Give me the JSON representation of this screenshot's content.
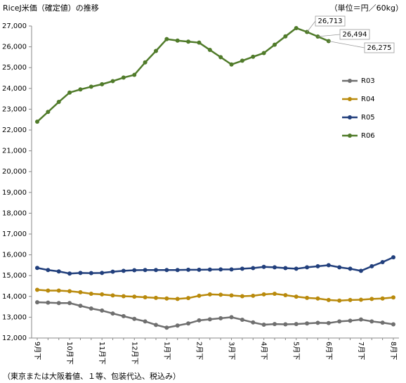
{
  "chart_data": {
    "type": "line",
    "title": "RiceJ米価（確定値）の推移",
    "unit_note": "（単位＝円／60kg）",
    "footnote": "（東京または大阪着値、１等、包装代込、税込み）",
    "categories": [
      "9月下",
      null,
      null,
      "10月下",
      null,
      null,
      "11月下",
      null,
      null,
      "12月下",
      null,
      null,
      "1月下",
      null,
      null,
      "2月下",
      null,
      null,
      "3月下",
      null,
      null,
      "4月下",
      null,
      null,
      "5月下",
      null,
      null,
      "6月下",
      null,
      null,
      "7月下",
      null,
      null,
      "8月下"
    ],
    "ylim": [
      12000,
      27000
    ],
    "yticks": [
      {
        "value": 12000,
        "label": "12,000"
      },
      {
        "value": 13000,
        "label": "13,000"
      },
      {
        "value": 14000,
        "label": "14,000"
      },
      {
        "value": 15000,
        "label": "15,000"
      },
      {
        "value": 16000,
        "label": "16,000"
      },
      {
        "value": 17000,
        "label": "17,000"
      },
      {
        "value": 18000,
        "label": "18,000"
      },
      {
        "value": 19000,
        "label": "19,000"
      },
      {
        "value": 20000,
        "label": "20,000"
      },
      {
        "value": 21000,
        "label": "21,000"
      },
      {
        "value": 22000,
        "label": "22,000"
      },
      {
        "value": 23000,
        "label": "23,000"
      },
      {
        "value": 24000,
        "label": "24,000"
      },
      {
        "value": 25000,
        "label": "25,000"
      },
      {
        "value": 26000,
        "label": "26,000"
      },
      {
        "value": 27000,
        "label": "27,000"
      }
    ],
    "series": [
      {
        "name": "R03",
        "color": "#6f6f6f",
        "values": [
          13720,
          13700,
          13680,
          13680,
          13550,
          13420,
          13320,
          13180,
          13050,
          12920,
          12800,
          12630,
          12500,
          12600,
          12700,
          12850,
          12900,
          12950,
          13000,
          12880,
          12750,
          12640,
          12670,
          12660,
          12670,
          12700,
          12730,
          12720,
          12800,
          12830,
          12890,
          12800,
          12740,
          12660
        ]
      },
      {
        "name": "R04",
        "color": "#b98a0c",
        "values": [
          14320,
          14280,
          14280,
          14250,
          14200,
          14130,
          14100,
          14050,
          14010,
          13990,
          13960,
          13930,
          13900,
          13880,
          13920,
          14030,
          14100,
          14080,
          14050,
          14010,
          14030,
          14100,
          14130,
          14060,
          13990,
          13930,
          13900,
          13830,
          13800,
          13830,
          13840,
          13880,
          13900,
          13950
        ]
      },
      {
        "name": "R05",
        "color": "#213f7c",
        "values": [
          15370,
          15270,
          15200,
          15100,
          15130,
          15120,
          15130,
          15190,
          15230,
          15260,
          15270,
          15270,
          15270,
          15270,
          15280,
          15280,
          15290,
          15300,
          15300,
          15330,
          15360,
          15420,
          15400,
          15360,
          15330,
          15400,
          15450,
          15500,
          15400,
          15330,
          15230,
          15450,
          15650,
          15880
        ]
      },
      {
        "name": "R06",
        "color": "#507b2a",
        "values": [
          22400,
          22870,
          23350,
          23800,
          23950,
          24080,
          24200,
          24350,
          24520,
          24650,
          25250,
          25800,
          26370,
          26300,
          26250,
          26200,
          25850,
          25500,
          25150,
          25330,
          25520,
          25700,
          26100,
          26500,
          26900,
          26713,
          26494,
          26275,
          null,
          null,
          null,
          null,
          null,
          null
        ],
        "value_labels": [
          null,
          null,
          null,
          null,
          null,
          null,
          null,
          null,
          null,
          null,
          null,
          null,
          null,
          null,
          null,
          null,
          null,
          null,
          null,
          null,
          null,
          null,
          null,
          null,
          null,
          "26,713",
          "26,494",
          "26,275",
          null,
          null,
          null,
          null,
          null,
          null
        ]
      }
    ]
  }
}
